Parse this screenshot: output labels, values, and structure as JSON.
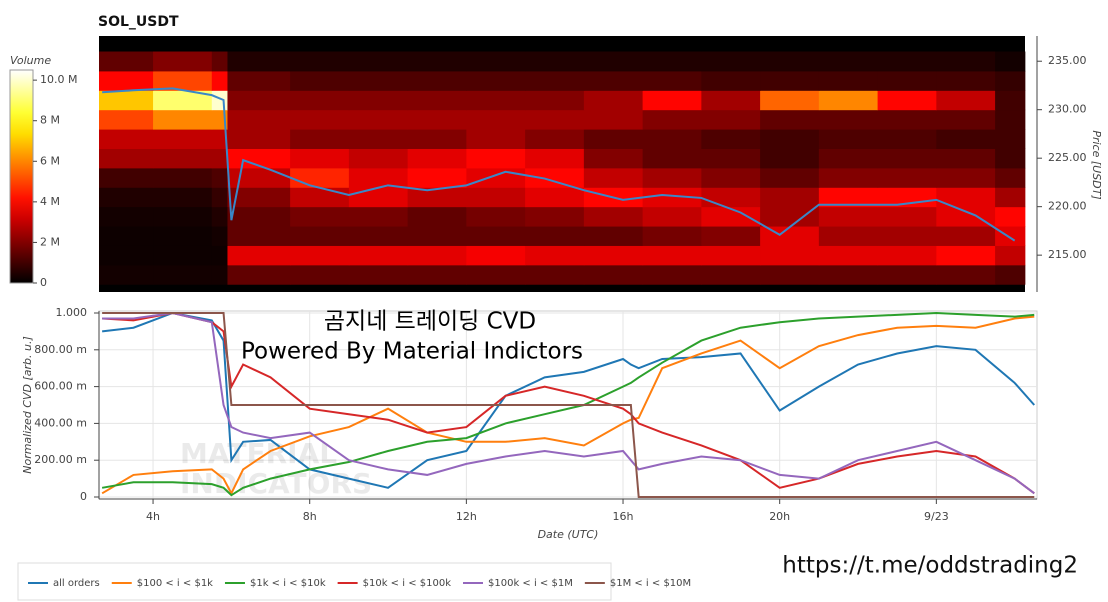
{
  "link": "https://t.me/oddstrading2",
  "chart_data": [
    {
      "type": "heatmap",
      "title": "SOL_USDT",
      "colorbar_title": "Volume",
      "ylabel": "Price [USDT]",
      "xlim": [
        2.62,
        26.57
      ],
      "ylim": [
        211.2,
        237.6
      ],
      "yticks": [
        {
          "value": 215,
          "label": "215.00"
        },
        {
          "value": 220,
          "label": "220.00"
        },
        {
          "value": 225,
          "label": "225.00"
        },
        {
          "value": 230,
          "label": "230.00"
        },
        {
          "value": 235,
          "label": "235.00"
        }
      ],
      "colorlim": [
        0,
        10.5
      ],
      "colorticks": [
        0,
        {
          "value": 2,
          "label": "2 M"
        },
        {
          "value": 4,
          "label": "4 M"
        },
        {
          "value": 6,
          "label": "6 M"
        },
        {
          "value": 8,
          "label": "8 M"
        },
        {
          "value": 10,
          "label": "10.0 M"
        }
      ],
      "x_bins": [
        2.62,
        4,
        5.5,
        5.9,
        7.5,
        9,
        10.5,
        12,
        13.5,
        15,
        16.5,
        18,
        19.5,
        21,
        22.5,
        24,
        25.5,
        26.26
      ],
      "y_bins": [
        212,
        214,
        216,
        218,
        220,
        222,
        224,
        226,
        228,
        230,
        232,
        234,
        236
      ],
      "z": [
        [
          0.3,
          0.3,
          0.3,
          1.5,
          1.5,
          1.5,
          1.5,
          1.5,
          1.5,
          1.5,
          1.5,
          1.5,
          1.5,
          1.5,
          1.5,
          1.5,
          1.2
        ],
        [
          0.2,
          0.2,
          0.2,
          3.5,
          3.5,
          3.5,
          3.5,
          3.8,
          3.5,
          3.5,
          3.5,
          3.5,
          3.5,
          3.5,
          3.5,
          4,
          3
        ],
        [
          0.2,
          0.2,
          0.3,
          1.5,
          1.5,
          1.5,
          1.5,
          1.5,
          1.5,
          1.5,
          1.8,
          2,
          3.5,
          2.5,
          2.5,
          2.5,
          3.5
        ],
        [
          0.3,
          0.3,
          0.5,
          1.5,
          1.8,
          1.8,
          1.5,
          1.8,
          2,
          2.5,
          3,
          3.5,
          2.5,
          3,
          3,
          3.5,
          4
        ],
        [
          0.5,
          0.5,
          0.8,
          2,
          3,
          3.5,
          3,
          3,
          3.5,
          4,
          3.5,
          3,
          2.5,
          4,
          4,
          3.5,
          2.5
        ],
        [
          1,
          1,
          1.2,
          3,
          4.5,
          3.5,
          4,
          3.5,
          4,
          3,
          2.5,
          2,
          1.5,
          2,
          2,
          2,
          1.5
        ],
        [
          2.5,
          2.5,
          2.5,
          4,
          3.5,
          3,
          3.5,
          4,
          3.5,
          2,
          1.5,
          1.5,
          1,
          1.5,
          1.5,
          1.5,
          1
        ],
        [
          3,
          3,
          3,
          2.5,
          2,
          2,
          2,
          2.5,
          2,
          1.5,
          1.5,
          1.2,
          1,
          1.2,
          1.2,
          1,
          1
        ],
        [
          5,
          6,
          6,
          2.5,
          2.5,
          2.5,
          2.5,
          2.5,
          2.5,
          2.5,
          2,
          2,
          1.5,
          1.5,
          1.5,
          1.5,
          1
        ],
        [
          7,
          9,
          10,
          2,
          2,
          2,
          2,
          2,
          2,
          2.5,
          4,
          2.5,
          5.5,
          6,
          4,
          3,
          1
        ],
        [
          4,
          5,
          4,
          1.5,
          1.2,
          1.2,
          1.2,
          1.2,
          1.2,
          1.2,
          1.2,
          1,
          1,
          1,
          1,
          1,
          0.8
        ],
        [
          1.5,
          2,
          1.5,
          0.5,
          0.5,
          0.5,
          0.5,
          0.5,
          0.5,
          0.5,
          0.5,
          0.5,
          0.5,
          0.5,
          0.5,
          0.5,
          0.3
        ]
      ],
      "price": {
        "color": "#3a87c8",
        "x": [
          2.7,
          3.5,
          4.5,
          5.5,
          5.8,
          6.0,
          6.3,
          7,
          8,
          9,
          10,
          11,
          12,
          13,
          14,
          15,
          16,
          17,
          18,
          19,
          20,
          21,
          22,
          23,
          24,
          25,
          26
        ],
        "values": [
          231.8,
          232.0,
          232.2,
          231.5,
          231.0,
          218.6,
          224.8,
          223.8,
          222.2,
          221.2,
          222.2,
          221.7,
          222.2,
          223.6,
          222.9,
          221.7,
          220.7,
          221.2,
          220.9,
          219.4,
          217.1,
          220.2,
          220.2,
          220.2,
          220.7,
          219.1,
          216.5
        ]
      }
    },
    {
      "type": "line",
      "ylabel": "Normalized CVD [arb. u.]",
      "xlabel": "Date (UTC)",
      "xlim": [
        2.62,
        26.57
      ],
      "ylim": [
        0,
        1
      ],
      "xticks": [
        {
          "value": 4,
          "label": "4h"
        },
        {
          "value": 8,
          "label": "8h"
        },
        {
          "value": 12,
          "label": "12h"
        },
        {
          "value": 16,
          "label": "16h"
        },
        {
          "value": 20,
          "label": "20h"
        },
        {
          "value": 24,
          "label": "9/23"
        }
      ],
      "yticks": [
        0,
        {
          "value": 0.2,
          "label": "200.00 m"
        },
        {
          "value": 0.4,
          "label": "400.00 m"
        },
        {
          "value": 0.6,
          "label": "600.00 m"
        },
        {
          "value": 0.8,
          "label": "800.00 m"
        },
        {
          "value": 1,
          "label": "1.000"
        }
      ],
      "grid": true,
      "legend": "bottom-left",
      "annotations": [
        "곰지네 트레이딩 CVD",
        "Powered By Material Indictors"
      ],
      "watermark": [
        "MATERIAL",
        "INDICATORS"
      ],
      "x": [
        2.7,
        3.5,
        4.5,
        5.5,
        5.8,
        6.0,
        6.3,
        7,
        8,
        9,
        10,
        11,
        12,
        13,
        14,
        15,
        16,
        16.2,
        16.4,
        17,
        18,
        19,
        20,
        21,
        22,
        23,
        24,
        25,
        26,
        26.5
      ],
      "series": [
        {
          "name": "all orders",
          "color": "#1f77b4",
          "values": [
            0.9,
            0.92,
            1.0,
            0.96,
            0.85,
            0.2,
            0.3,
            0.31,
            0.15,
            0.1,
            0.05,
            0.2,
            0.25,
            0.55,
            0.65,
            0.68,
            0.75,
            0.72,
            0.7,
            0.75,
            0.76,
            0.78,
            0.47,
            0.6,
            0.72,
            0.78,
            0.82,
            0.8,
            0.62,
            0.5
          ]
        },
        {
          "name": "$100 < i < $1k",
          "color": "#ff7f0e",
          "values": [
            0.02,
            0.12,
            0.14,
            0.15,
            0.1,
            0.02,
            0.15,
            0.25,
            0.33,
            0.38,
            0.48,
            0.35,
            0.3,
            0.3,
            0.32,
            0.28,
            0.4,
            0.42,
            0.43,
            0.7,
            0.78,
            0.85,
            0.7,
            0.82,
            0.88,
            0.92,
            0.93,
            0.92,
            0.97,
            0.98
          ]
        },
        {
          "name": "$1k < i < $10k",
          "color": "#2ca02c",
          "values": [
            0.05,
            0.08,
            0.08,
            0.07,
            0.05,
            0.01,
            0.05,
            0.1,
            0.15,
            0.19,
            0.25,
            0.3,
            0.32,
            0.4,
            0.45,
            0.5,
            0.6,
            0.62,
            0.65,
            0.73,
            0.85,
            0.92,
            0.95,
            0.97,
            0.98,
            0.99,
            1.0,
            0.99,
            0.98,
            0.99
          ]
        },
        {
          "name": "$10k < i < $100k",
          "color": "#d62728",
          "values": [
            0.97,
            0.96,
            1.0,
            0.95,
            0.9,
            0.6,
            0.72,
            0.65,
            0.48,
            0.45,
            0.42,
            0.35,
            0.38,
            0.55,
            0.6,
            0.55,
            0.48,
            0.45,
            0.4,
            0.35,
            0.28,
            0.2,
            0.05,
            0.1,
            0.18,
            0.22,
            0.25,
            0.22,
            0.1,
            0.02
          ]
        },
        {
          "name": "$100k < i < $1M",
          "color": "#9467bd",
          "values": [
            0.97,
            0.97,
            1.0,
            0.95,
            0.5,
            0.38,
            0.35,
            0.32,
            0.35,
            0.2,
            0.15,
            0.12,
            0.18,
            0.22,
            0.25,
            0.22,
            0.25,
            0.2,
            0.15,
            0.18,
            0.22,
            0.2,
            0.12,
            0.1,
            0.2,
            0.25,
            0.3,
            0.2,
            0.1,
            0.02
          ]
        },
        {
          "name": "$1M < i < $10M",
          "color": "#8c564b",
          "values": [
            1.0,
            1.0,
            1.0,
            1.0,
            1.0,
            0.5,
            0.5,
            0.5,
            0.5,
            0.5,
            0.5,
            0.5,
            0.5,
            0.5,
            0.5,
            0.5,
            0.5,
            0.5,
            0,
            0,
            0,
            0,
            0,
            0,
            0,
            0,
            0,
            0,
            0,
            0
          ]
        }
      ]
    }
  ]
}
